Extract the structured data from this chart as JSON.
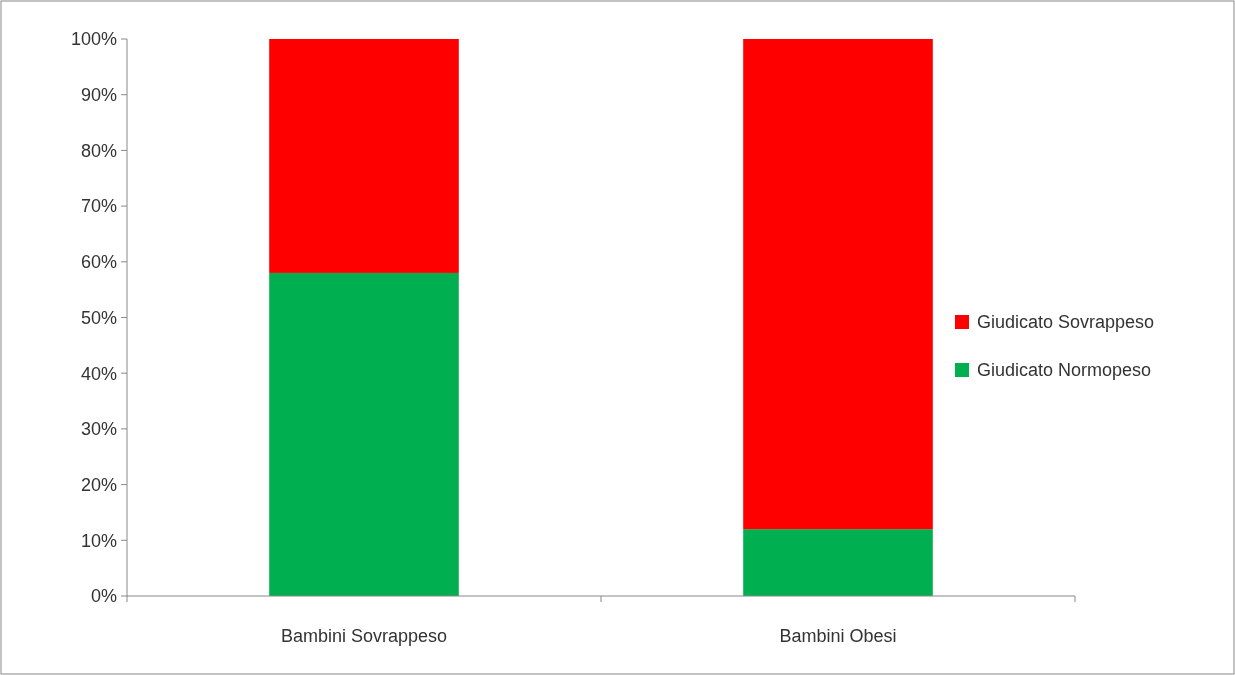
{
  "chart_data": {
    "type": "bar",
    "stacked": true,
    "categories": [
      "Bambini Sovrappeso",
      "Bambini Obesi"
    ],
    "series": [
      {
        "name": "Giudicato Normopeso",
        "color": "#00b050",
        "values": [
          58,
          12
        ]
      },
      {
        "name": "Giudicato Sovrappeso",
        "color": "#ff0000",
        "values": [
          42,
          88
        ]
      }
    ],
    "ylim": [
      0,
      100
    ],
    "yticks": [
      {
        "value": 0,
        "label": "0%"
      },
      {
        "value": 10,
        "label": "10%"
      },
      {
        "value": 20,
        "label": "20%"
      },
      {
        "value": 30,
        "label": "30%"
      },
      {
        "value": 40,
        "label": "40%"
      },
      {
        "value": 50,
        "label": "50%"
      },
      {
        "value": 60,
        "label": "60%"
      },
      {
        "value": 70,
        "label": "70%"
      },
      {
        "value": 80,
        "label": "80%"
      },
      {
        "value": 90,
        "label": "90%"
      },
      {
        "value": 100,
        "label": "100%"
      }
    ],
    "grid": false,
    "legend": "right"
  }
}
